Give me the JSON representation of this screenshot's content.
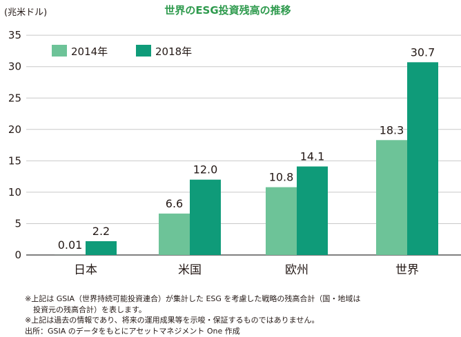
{
  "chart_data": {
    "type": "bar",
    "title": "世界のESG投資残高の推移",
    "unit_label": "(兆米ドル)",
    "categories": [
      "日本",
      "米国",
      "欧州",
      "世界"
    ],
    "series": [
      {
        "name": "2014年",
        "values": [
          0.01,
          6.6,
          10.8,
          18.3
        ],
        "labels": [
          "0.01",
          "6.6",
          "10.8",
          "18.3"
        ],
        "color": "#6dc398"
      },
      {
        "name": "2018年",
        "values": [
          2.2,
          12.0,
          14.1,
          30.7
        ],
        "labels": [
          "2.2",
          "12.0",
          "14.1",
          "30.7"
        ],
        "color": "#0f9b79"
      }
    ],
    "yticks": [
      0,
      5,
      10,
      15,
      20,
      25,
      30,
      35
    ],
    "ylim": [
      0,
      35
    ],
    "grid": true,
    "legend_position": "top-left"
  },
  "notes": [
    "※上記は GSIA（世界持続可能投資連合）が集計した ESG を考慮した戦略の残高合計（国・地域は",
    "投資元の残高合計）を表します。",
    "※上記は過去の情報であり、将来の運用成果等を示唆・保証するものではありません。",
    "出所：GSIA のデータをもとにアセットマネジメント One 作成"
  ]
}
